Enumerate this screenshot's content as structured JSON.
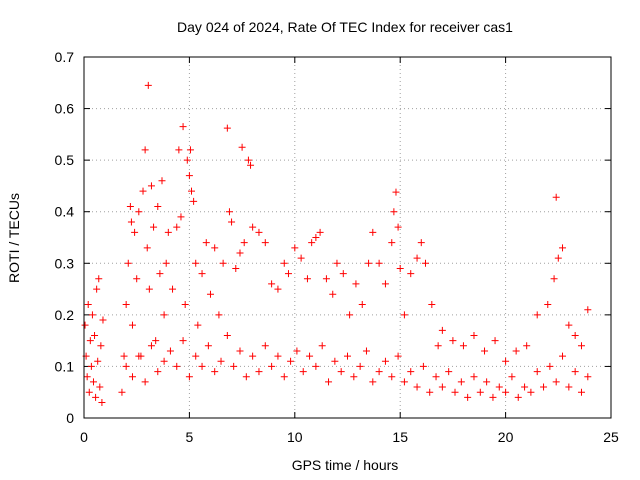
{
  "chart_data": {
    "type": "scatter",
    "title": "Day 024 of 2024, Rate Of TEC Index for receiver cas1",
    "xlabel": "GPS time / hours",
    "ylabel": "ROTI / TECUs",
    "xlim": [
      0,
      25
    ],
    "ylim": [
      0,
      0.7
    ],
    "xticks": [
      0,
      5,
      10,
      15,
      20,
      25
    ],
    "yticks": [
      0,
      0.1,
      0.2,
      0.3,
      0.4,
      0.5,
      0.6,
      0.7
    ],
    "xtick_labels": [
      "0",
      "5",
      "10",
      "15",
      "20",
      "25"
    ],
    "ytick_labels": [
      "0",
      "0.1",
      "0.2",
      "0.3",
      "0.4",
      "0.5",
      "0.6",
      "0.7"
    ],
    "grid": true,
    "marker": "+",
    "color": "#ff0000",
    "series": [
      {
        "name": "ROTI",
        "points": [
          [
            0.05,
            0.18
          ],
          [
            0.1,
            0.12
          ],
          [
            0.15,
            0.08
          ],
          [
            0.2,
            0.22
          ],
          [
            0.25,
            0.05
          ],
          [
            0.3,
            0.15
          ],
          [
            0.35,
            0.1
          ],
          [
            0.4,
            0.2
          ],
          [
            0.45,
            0.07
          ],
          [
            0.5,
            0.16
          ],
          [
            0.55,
            0.04
          ],
          [
            0.6,
            0.25
          ],
          [
            0.65,
            0.11
          ],
          [
            0.7,
            0.27
          ],
          [
            0.75,
            0.06
          ],
          [
            0.8,
            0.14
          ],
          [
            0.85,
            0.03
          ],
          [
            0.9,
            0.19
          ],
          [
            1.8,
            0.05
          ],
          [
            1.9,
            0.12
          ],
          [
            2.0,
            0.22
          ],
          [
            2.1,
            0.3
          ],
          [
            2.2,
            0.41
          ],
          [
            2.25,
            0.38
          ],
          [
            2.3,
            0.18
          ],
          [
            2.4,
            0.36
          ],
          [
            2.5,
            0.27
          ],
          [
            2.6,
            0.4
          ],
          [
            2.7,
            0.12
          ],
          [
            2.8,
            0.44
          ],
          [
            2.9,
            0.52
          ],
          [
            3.0,
            0.33
          ],
          [
            3.05,
            0.645
          ],
          [
            3.1,
            0.25
          ],
          [
            3.2,
            0.45
          ],
          [
            3.3,
            0.37
          ],
          [
            3.4,
            0.15
          ],
          [
            3.5,
            0.41
          ],
          [
            3.6,
            0.28
          ],
          [
            3.7,
            0.46
          ],
          [
            3.8,
            0.2
          ],
          [
            3.9,
            0.3
          ],
          [
            4.0,
            0.36
          ],
          [
            4.2,
            0.25
          ],
          [
            4.4,
            0.37
          ],
          [
            4.5,
            0.52
          ],
          [
            4.6,
            0.39
          ],
          [
            4.7,
            0.565
          ],
          [
            4.8,
            0.22
          ],
          [
            4.9,
            0.5
          ],
          [
            5.0,
            0.47
          ],
          [
            5.05,
            0.52
          ],
          [
            5.1,
            0.44
          ],
          [
            5.2,
            0.42
          ],
          [
            5.3,
            0.3
          ],
          [
            5.4,
            0.18
          ],
          [
            5.6,
            0.28
          ],
          [
            5.8,
            0.34
          ],
          [
            6.0,
            0.24
          ],
          [
            6.2,
            0.33
          ],
          [
            6.4,
            0.2
          ],
          [
            6.6,
            0.3
          ],
          [
            6.8,
            0.562
          ],
          [
            6.9,
            0.4
          ],
          [
            7.0,
            0.38
          ],
          [
            7.2,
            0.29
          ],
          [
            7.4,
            0.32
          ],
          [
            7.5,
            0.525
          ],
          [
            7.6,
            0.34
          ],
          [
            7.8,
            0.5
          ],
          [
            7.9,
            0.49
          ],
          [
            8.0,
            0.37
          ],
          [
            8.3,
            0.36
          ],
          [
            8.6,
            0.34
          ],
          [
            8.9,
            0.26
          ],
          [
            9.2,
            0.25
          ],
          [
            9.5,
            0.3
          ],
          [
            9.7,
            0.28
          ],
          [
            10.0,
            0.33
          ],
          [
            10.3,
            0.31
          ],
          [
            10.6,
            0.27
          ],
          [
            10.8,
            0.34
          ],
          [
            11.0,
            0.35
          ],
          [
            11.2,
            0.36
          ],
          [
            11.5,
            0.27
          ],
          [
            11.8,
            0.24
          ],
          [
            12.0,
            0.3
          ],
          [
            12.3,
            0.28
          ],
          [
            12.6,
            0.2
          ],
          [
            12.9,
            0.26
          ],
          [
            13.2,
            0.22
          ],
          [
            13.5,
            0.3
          ],
          [
            13.7,
            0.36
          ],
          [
            14.0,
            0.3
          ],
          [
            14.3,
            0.26
          ],
          [
            14.6,
            0.34
          ],
          [
            14.7,
            0.4
          ],
          [
            14.8,
            0.438
          ],
          [
            14.9,
            0.37
          ],
          [
            15.0,
            0.29
          ],
          [
            15.2,
            0.2
          ],
          [
            15.5,
            0.28
          ],
          [
            15.8,
            0.31
          ],
          [
            16.0,
            0.34
          ],
          [
            16.2,
            0.3
          ],
          [
            16.5,
            0.22
          ],
          [
            16.8,
            0.14
          ],
          [
            17.0,
            0.17
          ],
          [
            17.5,
            0.15
          ],
          [
            18.0,
            0.14
          ],
          [
            18.5,
            0.16
          ],
          [
            19.0,
            0.13
          ],
          [
            19.5,
            0.15
          ],
          [
            20.0,
            0.11
          ],
          [
            20.5,
            0.13
          ],
          [
            21.0,
            0.14
          ],
          [
            21.5,
            0.2
          ],
          [
            22.0,
            0.22
          ],
          [
            22.3,
            0.27
          ],
          [
            22.4,
            0.428
          ],
          [
            22.5,
            0.31
          ],
          [
            22.7,
            0.33
          ],
          [
            23.0,
            0.18
          ],
          [
            23.3,
            0.16
          ],
          [
            23.6,
            0.14
          ],
          [
            23.9,
            0.21
          ],
          [
            2.0,
            0.1
          ],
          [
            2.3,
            0.08
          ],
          [
            2.6,
            0.12
          ],
          [
            2.9,
            0.07
          ],
          [
            3.2,
            0.14
          ],
          [
            3.5,
            0.09
          ],
          [
            3.8,
            0.11
          ],
          [
            4.1,
            0.13
          ],
          [
            4.4,
            0.1
          ],
          [
            4.7,
            0.15
          ],
          [
            5.0,
            0.08
          ],
          [
            5.3,
            0.12
          ],
          [
            5.6,
            0.1
          ],
          [
            5.9,
            0.14
          ],
          [
            6.2,
            0.09
          ],
          [
            6.5,
            0.11
          ],
          [
            6.8,
            0.16
          ],
          [
            7.1,
            0.1
          ],
          [
            7.4,
            0.13
          ],
          [
            7.7,
            0.08
          ],
          [
            8.0,
            0.12
          ],
          [
            8.3,
            0.09
          ],
          [
            8.6,
            0.14
          ],
          [
            8.9,
            0.1
          ],
          [
            9.2,
            0.12
          ],
          [
            9.5,
            0.08
          ],
          [
            9.8,
            0.11
          ],
          [
            10.1,
            0.13
          ],
          [
            10.4,
            0.09
          ],
          [
            10.7,
            0.12
          ],
          [
            11.0,
            0.1
          ],
          [
            11.3,
            0.14
          ],
          [
            11.6,
            0.07
          ],
          [
            11.9,
            0.11
          ],
          [
            12.2,
            0.09
          ],
          [
            12.5,
            0.12
          ],
          [
            12.8,
            0.08
          ],
          [
            13.1,
            0.1
          ],
          [
            13.4,
            0.13
          ],
          [
            13.7,
            0.07
          ],
          [
            14.0,
            0.09
          ],
          [
            14.3,
            0.11
          ],
          [
            14.6,
            0.08
          ],
          [
            14.9,
            0.12
          ],
          [
            15.2,
            0.07
          ],
          [
            15.5,
            0.09
          ],
          [
            15.8,
            0.06
          ],
          [
            16.1,
            0.1
          ],
          [
            16.4,
            0.05
          ],
          [
            16.7,
            0.08
          ],
          [
            17.0,
            0.06
          ],
          [
            17.3,
            0.09
          ],
          [
            17.6,
            0.05
          ],
          [
            17.9,
            0.07
          ],
          [
            18.2,
            0.04
          ],
          [
            18.5,
            0.08
          ],
          [
            18.8,
            0.05
          ],
          [
            19.1,
            0.07
          ],
          [
            19.4,
            0.04
          ],
          [
            19.7,
            0.06
          ],
          [
            20.0,
            0.05
          ],
          [
            20.3,
            0.08
          ],
          [
            20.6,
            0.04
          ],
          [
            20.9,
            0.06
          ],
          [
            21.2,
            0.05
          ],
          [
            21.5,
            0.09
          ],
          [
            21.8,
            0.06
          ],
          [
            22.1,
            0.1
          ],
          [
            22.4,
            0.07
          ],
          [
            22.7,
            0.12
          ],
          [
            23.0,
            0.06
          ],
          [
            23.3,
            0.09
          ],
          [
            23.6,
            0.05
          ],
          [
            23.9,
            0.08
          ]
        ]
      }
    ]
  }
}
